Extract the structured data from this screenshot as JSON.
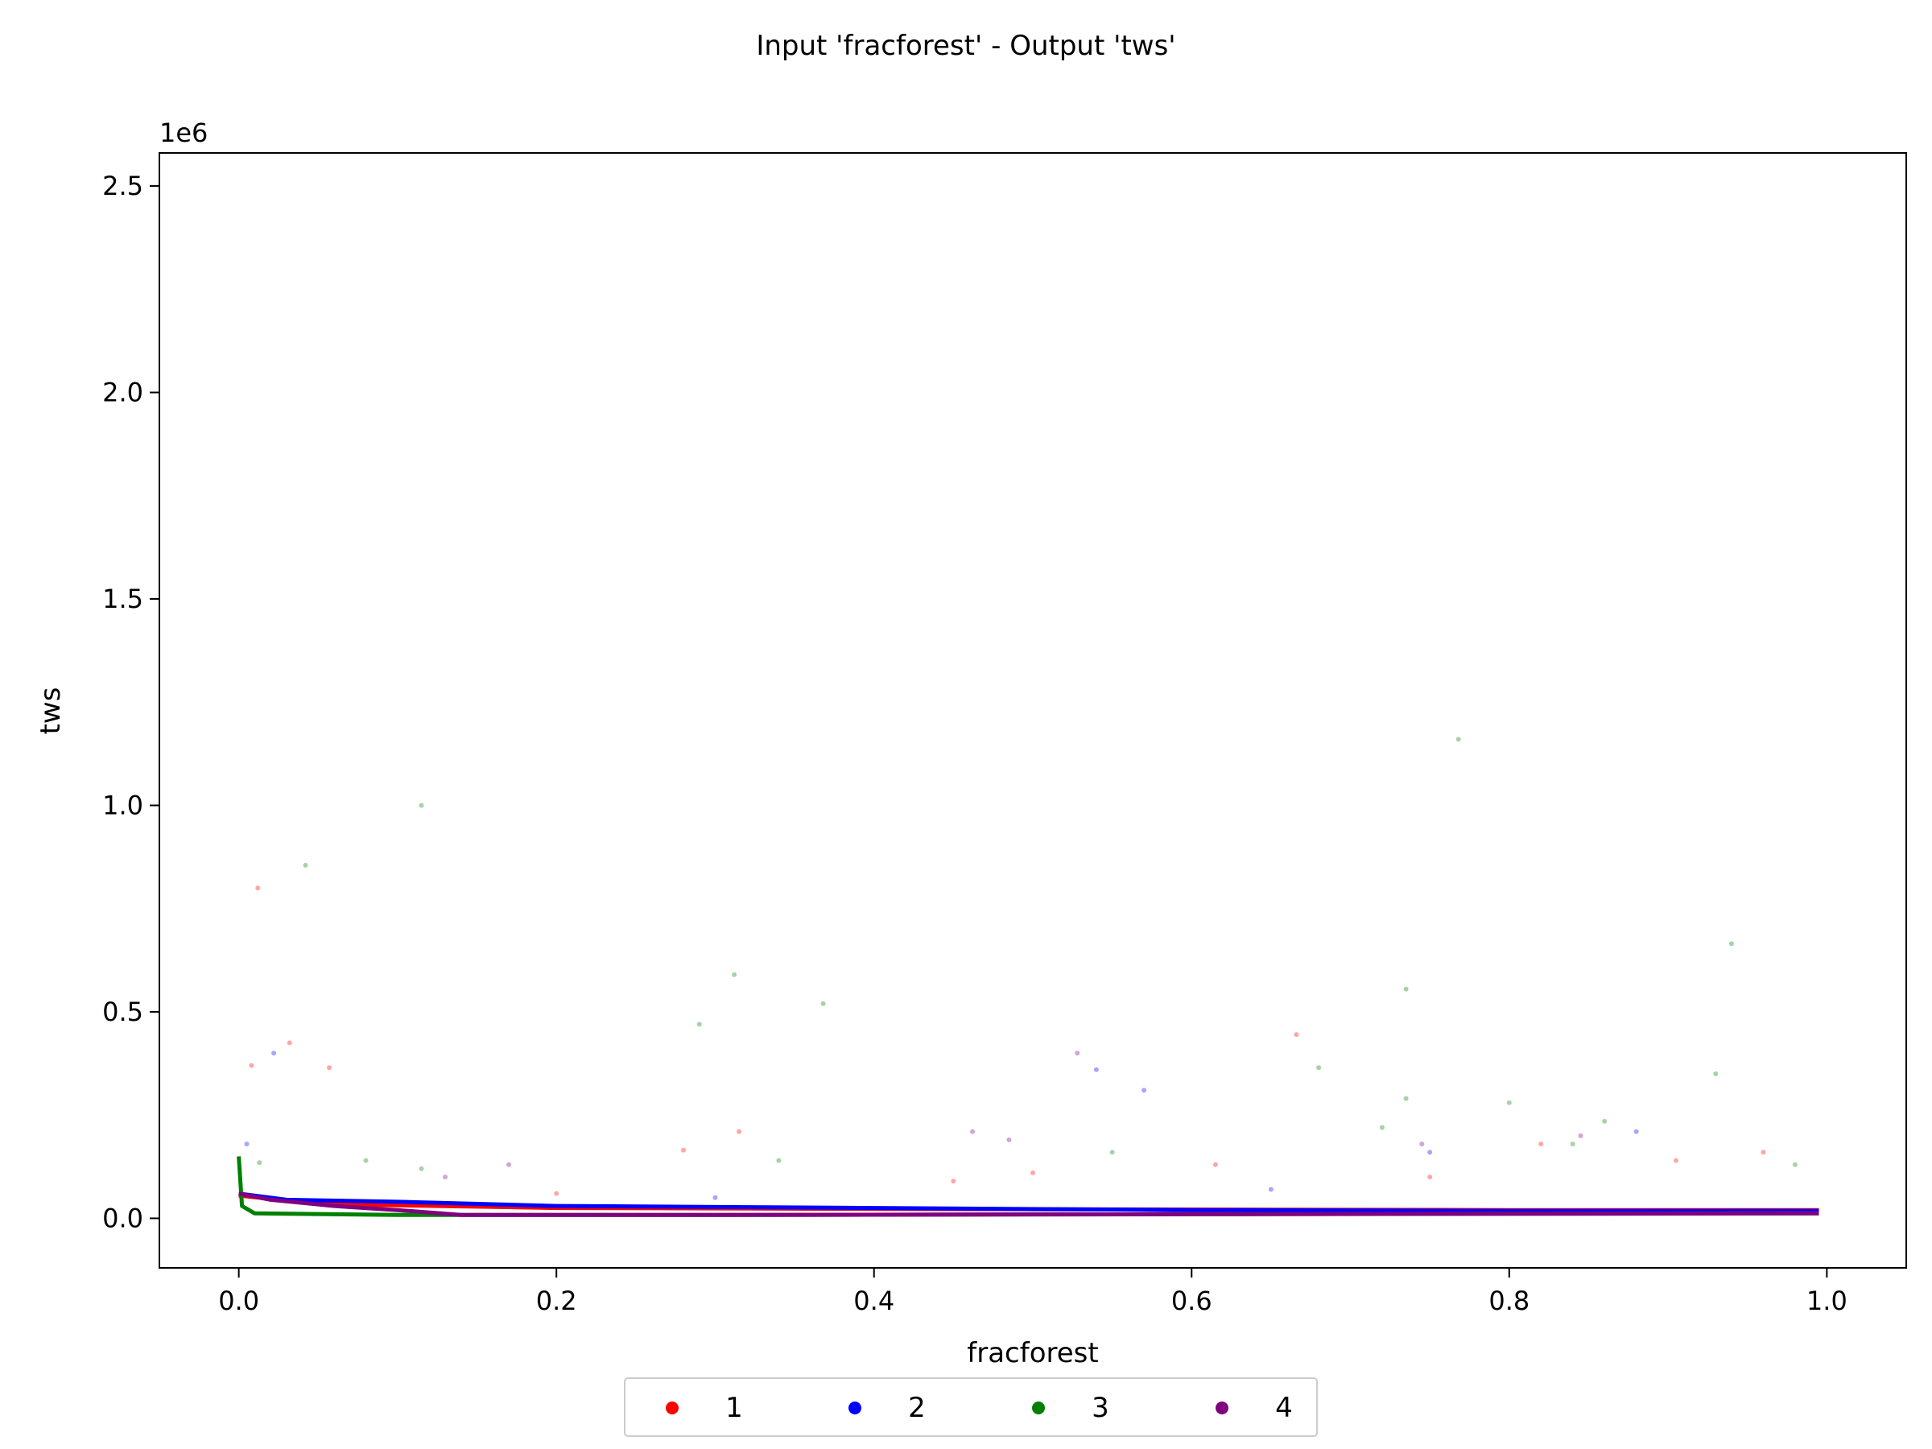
{
  "chart_data": {
    "type": "scatter",
    "title": "Input 'fracforest' - Output 'tws'",
    "xlabel": "fracforest",
    "ylabel": "tws",
    "y_offset_label": "1e6",
    "xlim": [
      -0.05,
      1.05
    ],
    "ylim": [
      -0.12,
      2.58
    ],
    "x_ticks": [
      0.0,
      0.2,
      0.4,
      0.6,
      0.8,
      1.0
    ],
    "x_tick_labels": [
      "0.0",
      "0.2",
      "0.4",
      "0.6",
      "0.8",
      "1.0"
    ],
    "y_ticks": [
      0.0,
      0.5,
      1.0,
      1.5,
      2.0,
      2.5
    ],
    "y_tick_labels": [
      "0.0",
      "0.5",
      "1.0",
      "1.5",
      "2.0",
      "2.5"
    ],
    "grid": false,
    "legend_position": "bottom-center",
    "series": [
      {
        "name": "1",
        "color": "#ff0000",
        "points": [
          [
            0.012,
            0.8
          ],
          [
            0.032,
            0.425
          ],
          [
            0.057,
            0.365
          ],
          [
            0.008,
            0.37
          ],
          [
            0.666,
            0.445
          ],
          [
            0.315,
            0.21
          ],
          [
            0.5,
            0.11
          ],
          [
            0.28,
            0.165
          ],
          [
            0.615,
            0.13
          ],
          [
            0.82,
            0.18
          ],
          [
            0.96,
            0.16
          ],
          [
            0.905,
            0.14
          ],
          [
            0.45,
            0.09
          ],
          [
            0.75,
            0.1
          ],
          [
            0.2,
            0.06
          ]
        ],
        "curve": [
          [
            0.0,
            0.055
          ],
          [
            0.05,
            0.035
          ],
          [
            0.2,
            0.025
          ],
          [
            0.5,
            0.022
          ],
          [
            0.8,
            0.02
          ],
          [
            0.995,
            0.02
          ]
        ]
      },
      {
        "name": "2",
        "color": "#0000ff",
        "points": [
          [
            0.022,
            0.4
          ],
          [
            0.005,
            0.18
          ],
          [
            0.54,
            0.36
          ],
          [
            0.57,
            0.31
          ],
          [
            0.75,
            0.16
          ],
          [
            0.88,
            0.21
          ],
          [
            0.3,
            0.05
          ],
          [
            0.65,
            0.07
          ]
        ],
        "curve": [
          [
            0.0,
            0.06
          ],
          [
            0.03,
            0.045
          ],
          [
            0.1,
            0.04
          ],
          [
            0.2,
            0.03
          ],
          [
            0.4,
            0.025
          ],
          [
            0.6,
            0.02
          ],
          [
            0.8,
            0.018
          ],
          [
            0.995,
            0.018
          ]
        ]
      },
      {
        "name": "3",
        "color": "#008000",
        "points": [
          [
            0.042,
            0.855
          ],
          [
            0.115,
            1.0
          ],
          [
            0.768,
            1.16
          ],
          [
            0.312,
            0.59
          ],
          [
            0.368,
            0.52
          ],
          [
            0.29,
            0.47
          ],
          [
            0.735,
            0.555
          ],
          [
            0.94,
            0.665
          ],
          [
            0.93,
            0.35
          ],
          [
            0.68,
            0.365
          ],
          [
            0.8,
            0.28
          ],
          [
            0.735,
            0.29
          ],
          [
            0.86,
            0.235
          ],
          [
            0.72,
            0.22
          ],
          [
            0.115,
            0.12
          ],
          [
            0.08,
            0.14
          ],
          [
            0.013,
            0.135
          ],
          [
            0.34,
            0.14
          ],
          [
            0.55,
            0.16
          ],
          [
            0.84,
            0.18
          ],
          [
            0.98,
            0.13
          ]
        ],
        "curve": [
          [
            0.0,
            0.15
          ],
          [
            0.002,
            0.03
          ],
          [
            0.01,
            0.012
          ],
          [
            0.1,
            0.008
          ],
          [
            0.3,
            0.008
          ],
          [
            0.6,
            0.01
          ],
          [
            0.93,
            0.012
          ],
          [
            0.995,
            0.012
          ]
        ]
      },
      {
        "name": "4",
        "color": "#800080",
        "points": [
          [
            0.528,
            0.4
          ],
          [
            0.485,
            0.19
          ],
          [
            0.462,
            0.21
          ],
          [
            0.845,
            0.2
          ],
          [
            0.745,
            0.18
          ],
          [
            0.17,
            0.13
          ],
          [
            0.13,
            0.1
          ]
        ],
        "curve": [
          [
            0.0,
            0.06
          ],
          [
            0.02,
            0.045
          ],
          [
            0.06,
            0.03
          ],
          [
            0.1,
            0.02
          ],
          [
            0.14,
            0.008
          ],
          [
            0.3,
            0.008
          ],
          [
            0.6,
            0.01
          ],
          [
            0.995,
            0.012
          ]
        ]
      }
    ]
  }
}
